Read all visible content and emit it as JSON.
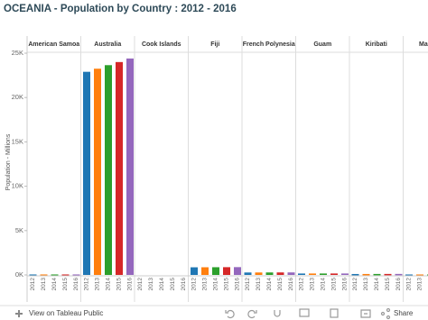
{
  "chart_data": {
    "type": "bar",
    "title": "OCEANIA - Population by Country : 2012 - 2016",
    "y_label": "Population - Millions",
    "categories": [
      "American Samoa",
      "Australia",
      "Cook Islands",
      "Fiji",
      "French Polynesia",
      "Guam",
      "Kiribati",
      "Marsha"
    ],
    "series": [
      {
        "name": "2012",
        "color": "#1f77b4",
        "values": [
          55,
          22900,
          null,
          860,
          275,
          160,
          105,
          53
        ]
      },
      {
        "name": "2013",
        "color": "#ff7f0e",
        "values": [
          55,
          23250,
          null,
          865,
          277,
          161,
          107,
          53
        ]
      },
      {
        "name": "2014",
        "color": "#2ca02c",
        "values": [
          55,
          23650,
          null,
          870,
          279,
          162,
          110,
          53
        ]
      },
      {
        "name": "2015",
        "color": "#d62728",
        "values": [
          55,
          24000,
          null,
          875,
          281,
          163,
          112,
          53
        ]
      },
      {
        "name": "2016",
        "color": "#9467bd",
        "values": [
          55,
          24400,
          null,
          880,
          283,
          163,
          114,
          53
        ]
      }
    ],
    "ylim": [
      0,
      25000
    ],
    "yticks": [
      {
        "value": 0,
        "label": "0K"
      },
      {
        "value": 5000,
        "label": "5K"
      },
      {
        "value": 10000,
        "label": "10K"
      },
      {
        "value": 15000,
        "label": "15K"
      },
      {
        "value": 20000,
        "label": "20K"
      },
      {
        "value": 25000,
        "label": "25K"
      }
    ],
    "grid": false
  },
  "toolbar": {
    "view_link": "View on Tableau Public",
    "share": "Share"
  }
}
